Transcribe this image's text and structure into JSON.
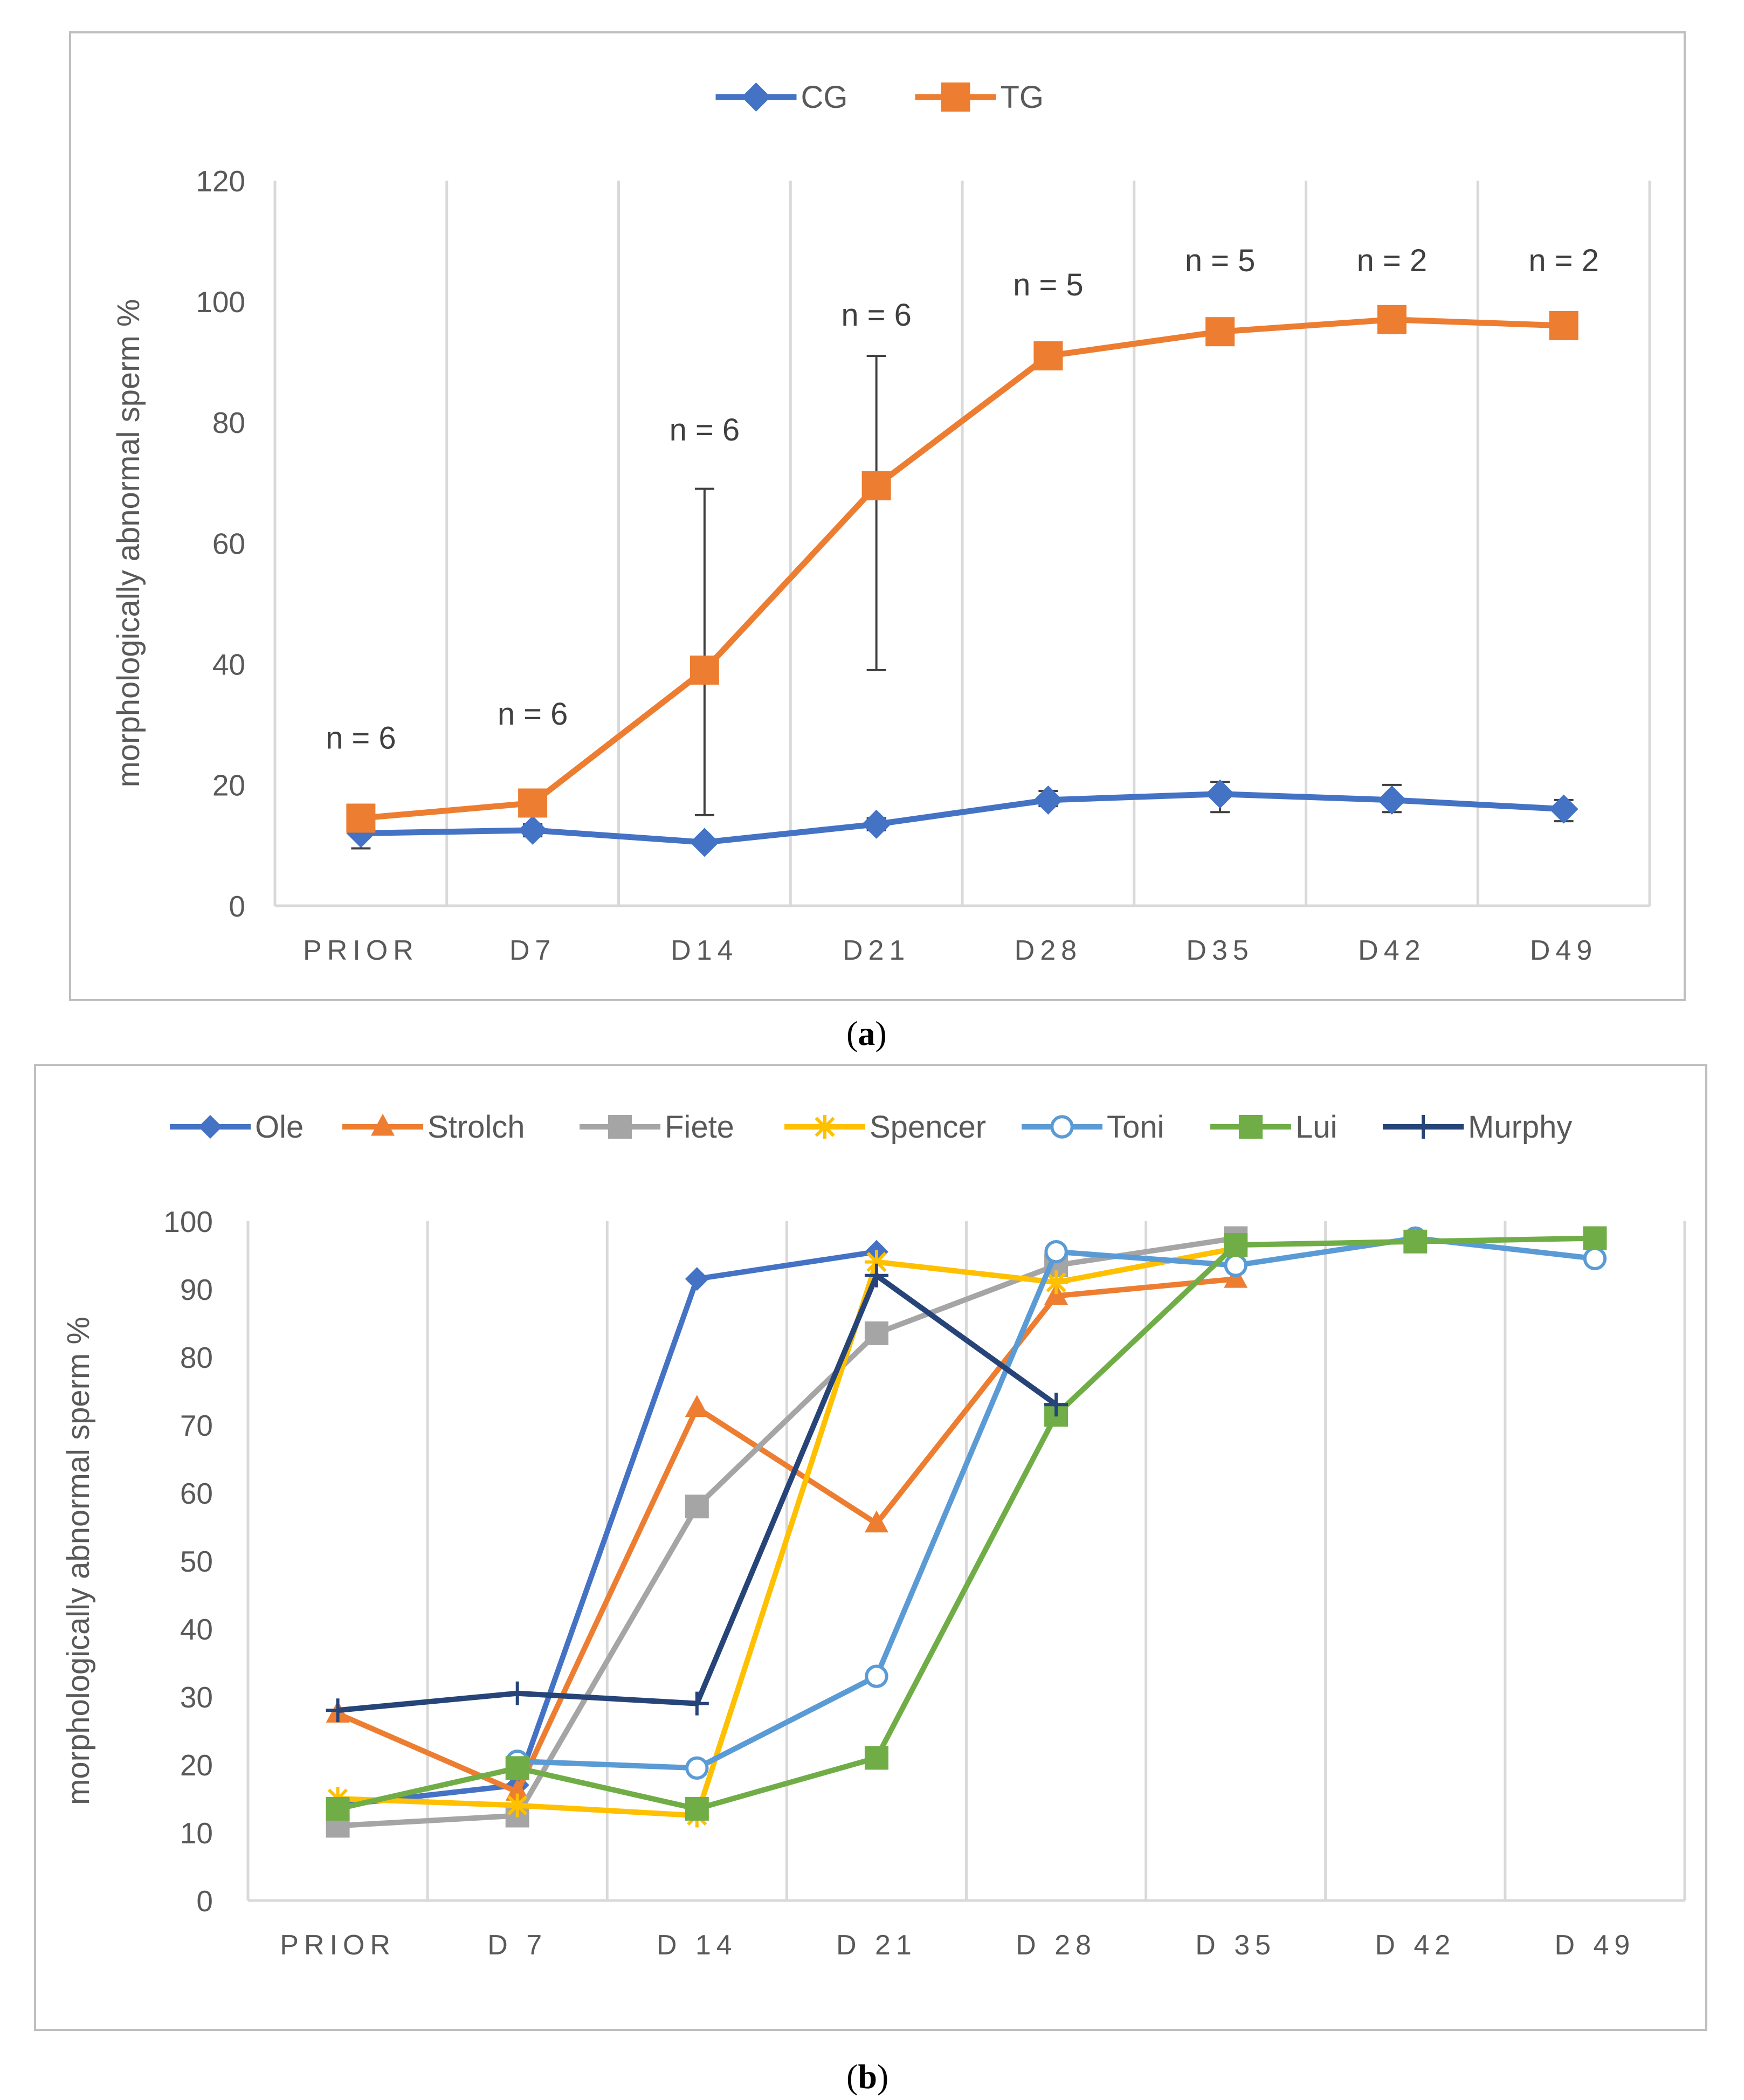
{
  "chart_data": [
    {
      "panel": "(a)",
      "type": "line",
      "title": "",
      "xlabel": "",
      "ylabel": "morphologically abnormal sperm %",
      "categories": [
        "PRIOR",
        "D7",
        "D14",
        "D21",
        "D28",
        "D35",
        "D42",
        "D49"
      ],
      "ylim": [
        0,
        120
      ],
      "yticks": [
        0,
        20,
        40,
        60,
        80,
        100,
        120
      ],
      "grid": "vertical",
      "legend": "top-center",
      "series": [
        {
          "name": "CG",
          "color": "#4472C4",
          "marker": "diamond",
          "values": [
            12,
            12.5,
            10.5,
            13.5,
            17.5,
            18.5,
            17.5,
            16
          ],
          "err_low": [
            9.5,
            11.5,
            10,
            12.5,
            16.5,
            15.5,
            15.5,
            14
          ],
          "err_high": [
            14.5,
            13.5,
            11,
            14.5,
            19,
            20.5,
            20,
            17.5
          ]
        },
        {
          "name": "TG",
          "color": "#ED7D31",
          "marker": "square",
          "values": [
            14.5,
            17,
            39,
            69.5,
            91,
            95,
            97,
            96
          ],
          "err_low": [
            null,
            null,
            15,
            39,
            null,
            null,
            null,
            null
          ],
          "err_high": [
            null,
            null,
            69,
            91,
            null,
            null,
            null,
            null
          ]
        }
      ],
      "annotations": [
        "n = 6",
        "n = 6",
        "n = 6",
        "n = 6",
        "n = 5",
        "n = 5",
        "n = 2",
        "n = 2"
      ],
      "annotation_y": [
        26,
        30,
        77,
        96,
        101,
        105,
        105,
        105
      ]
    },
    {
      "panel": "(b)",
      "type": "line",
      "title": "",
      "xlabel": "",
      "ylabel": "morphologically abnormal sperm %",
      "categories": [
        "PRIOR",
        "D 7",
        "D 14",
        "D 21",
        "D 28",
        "D  35",
        "D 42",
        "D 49"
      ],
      "ylim": [
        0,
        100
      ],
      "yticks": [
        0,
        10,
        20,
        30,
        40,
        50,
        60,
        70,
        80,
        90,
        100
      ],
      "grid": "vertical",
      "legend": "top-center",
      "series": [
        {
          "name": "Ole",
          "color": "#4472C4",
          "marker": "diamond",
          "values": [
            14,
            17,
            91.5,
            95.5,
            null,
            null,
            97.5,
            null
          ]
        },
        {
          "name": "Strolch",
          "color": "#ED7D31",
          "marker": "triangle",
          "values": [
            27.5,
            16,
            72.5,
            55.5,
            89,
            91.5,
            null,
            null
          ]
        },
        {
          "name": "Fiete",
          "color": "#A5A5A5",
          "marker": "square",
          "values": [
            11,
            12.5,
            58,
            83.5,
            93.5,
            97.5,
            null,
            null
          ]
        },
        {
          "name": "Spencer",
          "color": "#FFC000",
          "marker": "star",
          "values": [
            15,
            14,
            12.5,
            94,
            91,
            96,
            null,
            null
          ]
        },
        {
          "name": "Toni",
          "color": "#5B9BD5",
          "marker": "circle",
          "values": [
            null,
            20.5,
            19.5,
            33,
            95.5,
            93.5,
            97.5,
            94.5
          ]
        },
        {
          "name": "Lui",
          "color": "#70AD47",
          "marker": "square",
          "values": [
            13.5,
            19.5,
            13.5,
            21,
            71.5,
            96.5,
            97,
            97.5
          ]
        },
        {
          "name": "Murphy",
          "color": "#264478",
          "marker": "plus",
          "values": [
            28,
            30.5,
            29,
            92,
            73,
            null,
            null,
            null
          ]
        }
      ]
    }
  ],
  "labels": {
    "panel_a": "a",
    "panel_b": "b"
  }
}
